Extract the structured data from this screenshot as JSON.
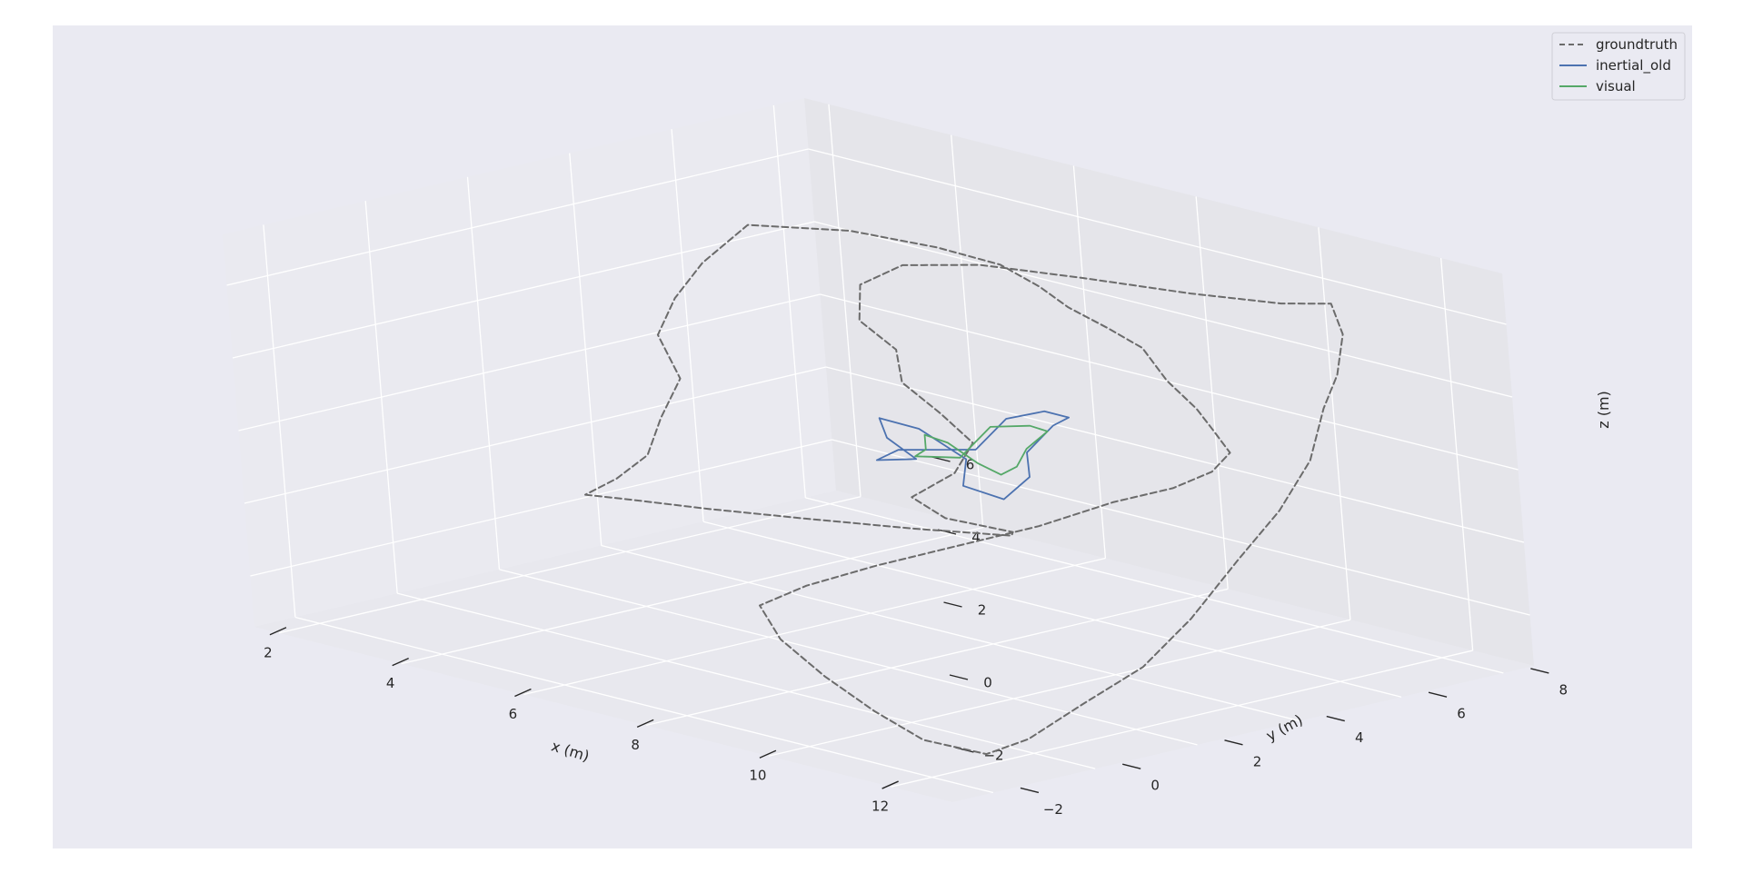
{
  "chart_data": {
    "type": "line",
    "projection": "3d",
    "xlabel": "x (m)",
    "ylabel": "y (m)",
    "zlabel": "z (m)",
    "xlim": [
      1.6,
      13.0
    ],
    "ylim": [
      -2.8,
      8.6
    ],
    "zlim": [
      -3.4,
      7.4
    ],
    "x_ticks": [
      2,
      4,
      6,
      8,
      10,
      12
    ],
    "y_ticks": [
      -2,
      0,
      2,
      4,
      6,
      8
    ],
    "z_ticks": [
      -2,
      0,
      2,
      4,
      6
    ],
    "x_tick_labels": [
      "2",
      "4",
      "6",
      "8",
      "10",
      "12"
    ],
    "y_tick_labels": [
      "−2",
      "0",
      "2",
      "4",
      "6",
      "8"
    ],
    "z_tick_labels": [
      "−2",
      "0",
      "2",
      "4",
      "6"
    ],
    "grid": true,
    "legend_position": "top-right",
    "colors": {
      "groundtruth": "#6b6b6b",
      "inertial_old": "#4c72b0",
      "visual": "#55a868",
      "pane_back": "#e5e5ea",
      "pane_side": "#eaeaf0",
      "pane_floor": "#e8e8ee",
      "figure_bg": "#eaeaf2"
    },
    "series": [
      {
        "name": "groundtruth",
        "style": "dashed",
        "points": [
          [
            4.0,
            1.0,
            0.0
          ],
          [
            4.6,
            1.2,
            0.05
          ],
          [
            5.5,
            1.6,
            0.05
          ],
          [
            6.6,
            2.2,
            0.05
          ],
          [
            7.8,
            2.9,
            0.05
          ],
          [
            8.8,
            3.6,
            0.05
          ],
          [
            9.0,
            3.4,
            0.3
          ],
          [
            8.5,
            2.7,
            0.7
          ],
          [
            8.4,
            2.2,
            1.4
          ],
          [
            8.8,
            2.6,
            2.1
          ],
          [
            8.8,
            3.0,
            2.8
          ],
          [
            8.3,
            3.0,
            3.4
          ],
          [
            7.7,
            3.0,
            4.0
          ],
          [
            7.3,
            3.4,
            4.6
          ],
          [
            6.9,
            3.2,
            5.3
          ],
          [
            6.7,
            3.5,
            6.1
          ],
          [
            7.0,
            4.0,
            6.6
          ],
          [
            7.6,
            4.8,
            6.6
          ],
          [
            8.6,
            5.6,
            6.4
          ],
          [
            9.6,
            6.5,
            6.1
          ],
          [
            10.4,
            7.3,
            5.9
          ],
          [
            10.8,
            7.8,
            5.9
          ],
          [
            11.3,
            7.4,
            5.4
          ],
          [
            11.5,
            7.0,
            4.5
          ],
          [
            11.4,
            6.8,
            3.6
          ],
          [
            11.8,
            6.0,
            2.6
          ],
          [
            12.0,
            5.1,
            1.6
          ],
          [
            12.1,
            4.1,
            0.6
          ],
          [
            12.2,
            3.0,
            -0.6
          ],
          [
            12.2,
            2.0,
            -1.6
          ],
          [
            12.1,
            0.9,
            -2.3
          ],
          [
            12.1,
            -0.2,
            -2.9
          ],
          [
            11.9,
            -0.8,
            -3.2
          ],
          [
            11.3,
            -1.3,
            -2.9
          ],
          [
            10.7,
            -1.5,
            -2.3
          ],
          [
            10.0,
            -1.6,
            -1.6
          ],
          [
            9.4,
            -1.7,
            -0.8
          ],
          [
            9.1,
            -1.7,
            0.0
          ],
          [
            9.3,
            -1.0,
            0.4
          ],
          [
            9.8,
            -0.2,
            0.9
          ],
          [
            10.4,
            0.6,
            1.4
          ],
          [
            11.0,
            1.6,
            1.9
          ],
          [
            11.4,
            2.6,
            2.4
          ],
          [
            11.9,
            3.2,
            2.8
          ],
          [
            12.4,
            3.4,
            3.4
          ],
          [
            12.9,
            3.2,
            4.2
          ],
          [
            12.8,
            3.0,
            4.9
          ],
          [
            12.4,
            3.2,
            5.2
          ],
          [
            11.6,
            3.6,
            5.5
          ],
          [
            10.8,
            4.1,
            5.9
          ],
          [
            10.0,
            4.4,
            6.0
          ],
          [
            9.1,
            4.7,
            6.1
          ],
          [
            8.3,
            5.1,
            6.2
          ],
          [
            7.5,
            5.3,
            6.4
          ],
          [
            6.3,
            5.5,
            6.3
          ],
          [
            5.3,
            5.0,
            6.5
          ],
          [
            4.3,
            4.2,
            6.5
          ],
          [
            4.1,
            3.5,
            5.6
          ],
          [
            4.2,
            2.8,
            4.9
          ],
          [
            4.3,
            2.3,
            4.1
          ],
          [
            4.7,
            2.2,
            3.1
          ],
          [
            4.5,
            2.0,
            2.0
          ],
          [
            4.4,
            1.8,
            1.0
          ],
          [
            4.2,
            1.4,
            0.4
          ],
          [
            4.0,
            1.0,
            0.0
          ]
        ]
      },
      {
        "name": "inertial_old",
        "style": "solid",
        "points": [
          [
            7.8,
            4.2,
            1.8
          ],
          [
            8.0,
            4.6,
            2.6
          ],
          [
            8.3,
            5.0,
            2.8
          ],
          [
            8.7,
            5.0,
            2.8
          ],
          [
            8.6,
            4.8,
            2.6
          ],
          [
            8.3,
            4.6,
            1.8
          ],
          [
            8.4,
            4.5,
            1.2
          ],
          [
            8.2,
            4.2,
            0.6
          ],
          [
            7.8,
            3.9,
            0.9
          ],
          [
            7.8,
            4.0,
            1.6
          ],
          [
            7.4,
            3.6,
            2.4
          ],
          [
            7.1,
            3.2,
            2.7
          ],
          [
            7.2,
            3.2,
            2.2
          ],
          [
            7.4,
            3.5,
            1.6
          ],
          [
            7.0,
            3.2,
            1.5
          ],
          [
            7.2,
            3.4,
            1.8
          ],
          [
            7.8,
            4.2,
            1.8
          ]
        ]
      },
      {
        "name": "visual",
        "style": "solid",
        "points": [
          [
            7.7,
            4.0,
            1.6
          ],
          [
            7.9,
            4.4,
            2.4
          ],
          [
            8.3,
            4.7,
            2.5
          ],
          [
            8.5,
            4.8,
            2.4
          ],
          [
            8.3,
            4.6,
            1.9
          ],
          [
            8.2,
            4.5,
            1.4
          ],
          [
            8.1,
            4.3,
            1.2
          ],
          [
            7.9,
            4.1,
            1.5
          ],
          [
            7.6,
            3.9,
            2.0
          ],
          [
            7.4,
            3.7,
            2.2
          ],
          [
            7.4,
            3.7,
            1.8
          ],
          [
            7.3,
            3.6,
            1.6
          ],
          [
            7.7,
            4.0,
            1.6
          ]
        ]
      }
    ]
  }
}
